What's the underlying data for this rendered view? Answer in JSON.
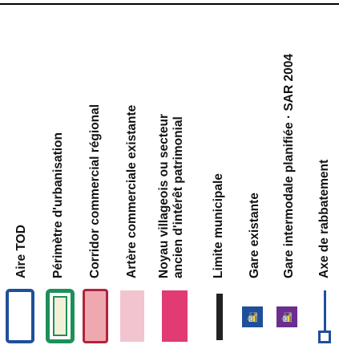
{
  "legend": {
    "items": [
      {
        "label": "Aire TOD",
        "symbol": "tod-outline",
        "color": "#1f4f9a"
      },
      {
        "label": "Périmètre d'urbanisation",
        "symbol": "urban-perimeter",
        "color": "#1f8f5a"
      },
      {
        "label": "Corridor commercial régional",
        "symbol": "regional-corridor",
        "color": "#b0243b"
      },
      {
        "label": "Artère commerciale existante",
        "symbol": "commercial-artery",
        "color": "#f2c4d0"
      },
      {
        "label_lines": [
          "Noyau villageois ou secteur",
          "ancien d'intérêt patrimonial"
        ],
        "symbol": "village-core",
        "color": "#e23a72"
      },
      {
        "label": "Limite municipale",
        "symbol": "municipal-limit",
        "color": "#222222"
      },
      {
        "label": "Gare existante",
        "symbol": "existing-station",
        "color": "#1f4f9a"
      },
      {
        "label": "Gare intermodale planifiée · SAR 2004",
        "symbol": "planned-station",
        "color": "#6b2d8f"
      },
      {
        "label": "Axe de rabbatement",
        "symbol": "feeder-axis",
        "color": "#1f4f9a"
      }
    ]
  }
}
